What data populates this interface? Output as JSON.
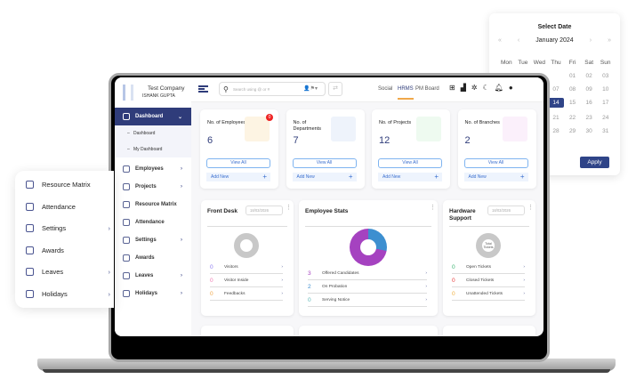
{
  "calendar": {
    "title": "Select Date",
    "month": "January 2024",
    "prev_year": "«",
    "prev": "‹",
    "next": "›",
    "next_year": "»",
    "weekdays": [
      "Mon",
      "Tue",
      "Wed",
      "Thu",
      "Fri",
      "Sat",
      "Sun"
    ],
    "weeks": [
      [
        "",
        "",
        "",
        "",
        "01",
        "02",
        "03"
      ],
      [
        "",
        "",
        "",
        "07",
        "08",
        "09",
        "10"
      ],
      [
        "",
        "",
        "",
        "14",
        "15",
        "16",
        "17"
      ],
      [
        "",
        "",
        "",
        "21",
        "22",
        "23",
        "24"
      ],
      [
        "",
        "",
        "",
        "28",
        "29",
        "30",
        "31"
      ]
    ],
    "selected": "14",
    "apply": "Apply",
    "accent": "#2f4488"
  },
  "sidebar": {
    "company": "Test Company",
    "user": "ISHANK GUPTA",
    "items": [
      {
        "label": "Dashboard",
        "active": true
      },
      {
        "label": "Dashboard",
        "sub": true
      },
      {
        "label": "My Dashboard",
        "sub": true
      },
      {
        "label": "Employees",
        "chevron": true
      },
      {
        "label": "Projects",
        "chevron": true
      },
      {
        "label": "Resource Matrix"
      },
      {
        "label": "Attendance"
      },
      {
        "label": "Settings",
        "chevron": true
      },
      {
        "label": "Awards"
      },
      {
        "label": "Leaves",
        "chevron": true
      },
      {
        "label": "Holidays",
        "chevron": true
      }
    ]
  },
  "header": {
    "search_placeholder": "Search using @ or #",
    "tabs": [
      "Social",
      "HRMS",
      "PM Board"
    ],
    "active_tab": "HRMS"
  },
  "kpis": [
    {
      "label": "No. of Employees",
      "value": "6",
      "badge": "0",
      "view": "View All",
      "add": "Add New",
      "bg": "#fdf4e3"
    },
    {
      "label": "No. of Departments",
      "value": "7",
      "view": "View All",
      "add": "Add New",
      "bg": "#eef3fb"
    },
    {
      "label": "No. of Projects",
      "value": "12",
      "view": "View All",
      "add": "Add New",
      "bg": "#eefaf0"
    },
    {
      "label": "No. of Branches",
      "value": "2",
      "view": "View All",
      "add": "Add New",
      "bg": "#fbf0fb"
    }
  ],
  "front_desk": {
    "title": "Front Desk",
    "date": "18/03/2026",
    "rows": [
      {
        "n": "0",
        "label": "Visitors",
        "color": "#8e7cf0"
      },
      {
        "n": "0",
        "label": "Visitor Inside",
        "color": "#f07cb4"
      },
      {
        "n": "0",
        "label": "Feedbacks",
        "color": "#f0a84a"
      }
    ]
  },
  "employee_stats": {
    "title": "Employee Stats",
    "rows": [
      {
        "n": "3",
        "label": "Offered Candidates",
        "color": "#a542c0"
      },
      {
        "n": "2",
        "label": "On Probation",
        "color": "#3d8fd0"
      },
      {
        "n": "0",
        "label": "Serving Notice",
        "color": "#5bb7b7"
      }
    ]
  },
  "hardware": {
    "title": "Hardware Support",
    "date": "18/03/2026",
    "center": "Total Tickets",
    "rows": [
      {
        "n": "0",
        "label": "Open Tickets",
        "color": "#3cb371"
      },
      {
        "n": "0",
        "label": "Closed Tickets",
        "color": "#e83c3c"
      },
      {
        "n": "0",
        "label": "Unattended Tickets",
        "color": "#f0b040"
      }
    ]
  },
  "float_menu": [
    {
      "label": "Resource Matrix"
    },
    {
      "label": "Attendance"
    },
    {
      "label": "Settings",
      "chevron": true
    },
    {
      "label": "Awards"
    },
    {
      "label": "Leaves",
      "chevron": true
    },
    {
      "label": "Holidays",
      "chevron": true
    }
  ]
}
